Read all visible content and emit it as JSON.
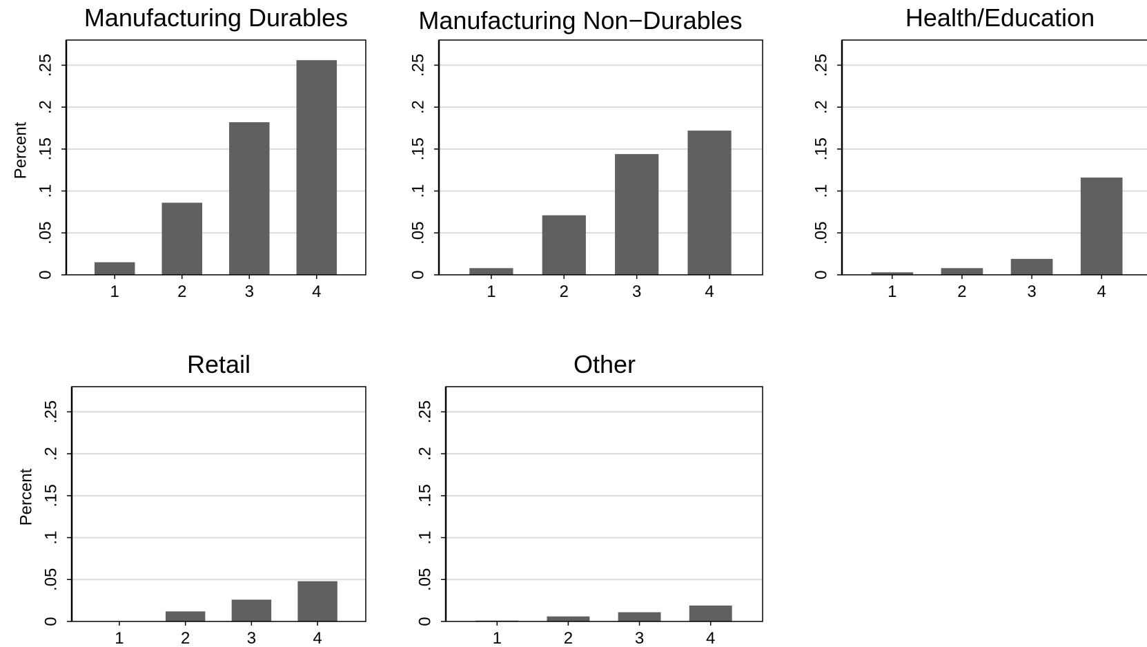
{
  "chart_data": [
    {
      "type": "bar",
      "title": "Manufacturing Durables",
      "ylabel": "Percent",
      "categories": [
        "1",
        "2",
        "3",
        "4"
      ],
      "values": [
        0.015,
        0.086,
        0.182,
        0.256
      ],
      "ylim": [
        0,
        0.28
      ],
      "yticks": [
        "0",
        ".05",
        ".1",
        ".15",
        ".2",
        ".25"
      ],
      "grid": true,
      "bar_color": "#606060"
    },
    {
      "type": "bar",
      "title": "Manufacturing Non−Durables",
      "ylabel": "",
      "categories": [
        "1",
        "2",
        "3",
        "4"
      ],
      "values": [
        0.008,
        0.071,
        0.144,
        0.172
      ],
      "ylim": [
        0,
        0.28
      ],
      "yticks": [
        "0",
        ".05",
        ".1",
        ".15",
        ".2",
        ".25"
      ],
      "grid": true,
      "bar_color": "#606060"
    },
    {
      "type": "bar",
      "title": "Health/Education",
      "ylabel": "",
      "categories": [
        "1",
        "2",
        "3",
        "4"
      ],
      "values": [
        0.003,
        0.008,
        0.019,
        0.116
      ],
      "ylim": [
        0,
        0.28
      ],
      "yticks": [
        "0",
        ".05",
        ".1",
        ".15",
        ".2",
        ".25"
      ],
      "grid": true,
      "bar_color": "#606060"
    },
    {
      "type": "bar",
      "title": "Retail",
      "ylabel": "Percent",
      "categories": [
        "1",
        "2",
        "3",
        "4"
      ],
      "values": [
        0.0,
        0.012,
        0.026,
        0.048
      ],
      "ylim": [
        0,
        0.28
      ],
      "yticks": [
        "0",
        ".05",
        ".1",
        ".15",
        ".2",
        ".25"
      ],
      "grid": true,
      "bar_color": "#606060"
    },
    {
      "type": "bar",
      "title": "Other",
      "ylabel": "",
      "categories": [
        "1",
        "2",
        "3",
        "4"
      ],
      "values": [
        0.001,
        0.006,
        0.011,
        0.019
      ],
      "ylim": [
        0,
        0.28
      ],
      "yticks": [
        "0",
        ".05",
        ".1",
        ".15",
        ".2",
        ".25"
      ],
      "grid": true,
      "bar_color": "#606060"
    }
  ]
}
